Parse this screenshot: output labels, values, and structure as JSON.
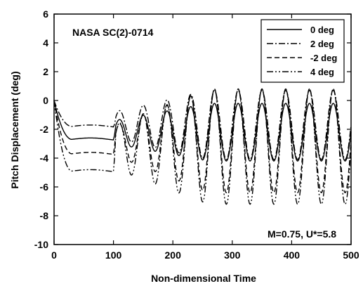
{
  "chart_data": {
    "type": "line",
    "xlabel": "Non-dimensional Time",
    "ylabel": "Pitch Displacement (deg)",
    "xlim": [
      0,
      500
    ],
    "ylim": [
      -10,
      6
    ],
    "xticks": [
      "0",
      "100",
      "200",
      "300",
      "400",
      "500"
    ],
    "yticks": [
      "-10",
      "-8",
      "-6",
      "-4",
      "-2",
      "0",
      "2",
      "4",
      "6"
    ],
    "annotations": {
      "airfoil": "NASA SC(2)-0714",
      "conditions": "M=0.75, U*=5.8"
    },
    "legend_position": "top-right",
    "series": [
      {
        "name": "0 deg",
        "dash": "solid",
        "plateau": -2.7,
        "osc_mean": -2.2,
        "osc_amp": [
          0.8,
          2.0
        ],
        "points": [
          [
            0,
            0
          ],
          [
            10,
            -1.5
          ],
          [
            20,
            -2.4
          ],
          [
            30,
            -2.7
          ],
          [
            100,
            -2.7
          ],
          [
            109,
            -0.4
          ],
          [
            500,
            -4.0
          ]
        ]
      },
      {
        "name": "2 deg",
        "dash": "dash-dot",
        "plateau": -1.8,
        "osc_mean": -1.7,
        "osc_amp": [
          0.9,
          2.4
        ],
        "points": [
          [
            0,
            0
          ],
          [
            10,
            -1.0
          ],
          [
            20,
            -1.6
          ],
          [
            30,
            -1.8
          ],
          [
            100,
            -1.7
          ],
          [
            108,
            0.3
          ],
          [
            500,
            -4.5
          ]
        ]
      },
      {
        "name": "-2 deg",
        "dash": "dashed",
        "plateau": -3.7,
        "osc_mean": -2.8,
        "osc_amp": [
          1.0,
          3.6
        ],
        "points": [
          [
            0,
            0
          ],
          [
            10,
            -2.0
          ],
          [
            20,
            -3.3
          ],
          [
            30,
            -3.7
          ],
          [
            100,
            -3.6
          ],
          [
            110,
            -0.5
          ],
          [
            500,
            -6.5
          ]
        ]
      },
      {
        "name": "4 deg",
        "dash": "dash-dot-dot",
        "plateau": -4.9,
        "osc_mean": -3.2,
        "osc_amp": [
          1.5,
          4.0
        ],
        "points": [
          [
            0,
            0
          ],
          [
            10,
            -2.5
          ],
          [
            20,
            -4.4
          ],
          [
            30,
            -4.9
          ],
          [
            100,
            -4.8
          ],
          [
            112,
            -1.0
          ],
          [
            500,
            -7.3
          ]
        ]
      }
    ],
    "oscillation_period": 40,
    "oscillation_start": 100
  }
}
